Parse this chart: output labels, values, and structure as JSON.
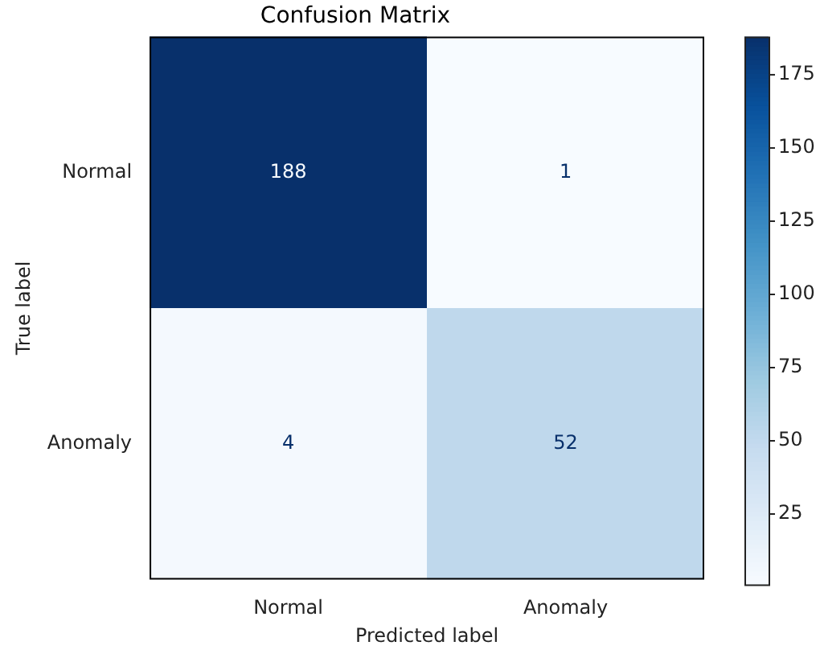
{
  "chart_data": {
    "type": "heatmap",
    "title": "Confusion Matrix",
    "xlabel": "Predicted label",
    "ylabel": "True label",
    "categories": [
      "Normal",
      "Anomaly"
    ],
    "y_categories": [
      "Normal",
      "Anomaly"
    ],
    "cells": [
      [
        188,
        1
      ],
      [
        4,
        52
      ]
    ],
    "clim": [
      1,
      188
    ],
    "cticks": [
      25,
      50,
      75,
      100,
      125,
      150,
      175
    ],
    "data_labels": true
  }
}
